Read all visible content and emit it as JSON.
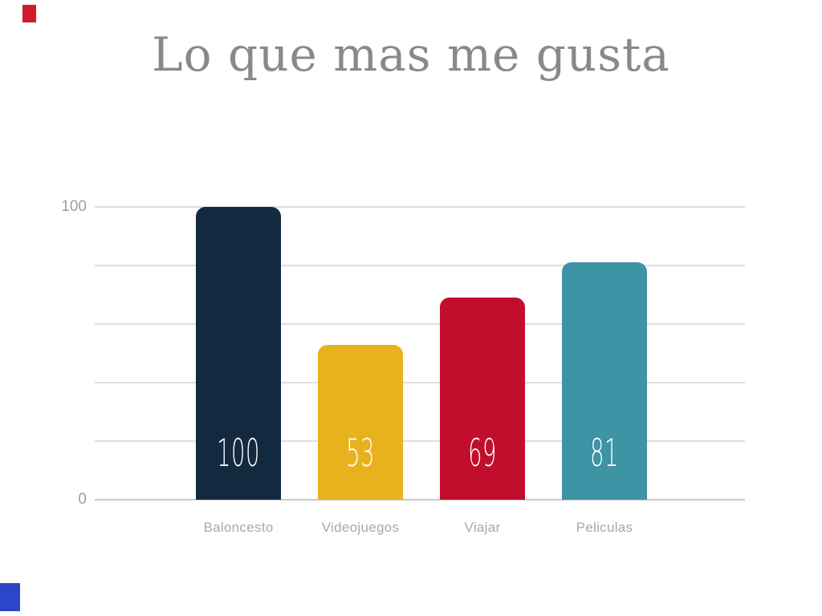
{
  "title": {
    "text": "Lo que mas me gusta",
    "color": "#898989"
  },
  "decorations": {
    "top_left_accent_color": "#d01c2a",
    "bottom_left_accent_color": "#2c45c9"
  },
  "chart_data": {
    "type": "bar",
    "title": "Lo que mas me gusta",
    "categories": [
      "Baloncesto",
      "Videojuegos",
      "Viajar",
      "Peliculas"
    ],
    "values": [
      100,
      53,
      69,
      81
    ],
    "bar_colors": [
      "#132940",
      "#e8b21f",
      "#c10e2d",
      "#3e93a4"
    ],
    "value_labels": [
      "100",
      "53",
      "69",
      "81"
    ],
    "value_label_color": "#ffffff",
    "category_label_color": "#a9a9a9",
    "xlabel": "",
    "ylabel": "",
    "ylim": [
      0,
      100
    ],
    "y_ticks_labeled": [
      0,
      100
    ],
    "gridline_every": 20,
    "grid": "on",
    "legend": "none",
    "gridline_color": "#dedede",
    "zero_line_color": "#c9c9c9",
    "tick_label_color": "#9e9e9e"
  }
}
